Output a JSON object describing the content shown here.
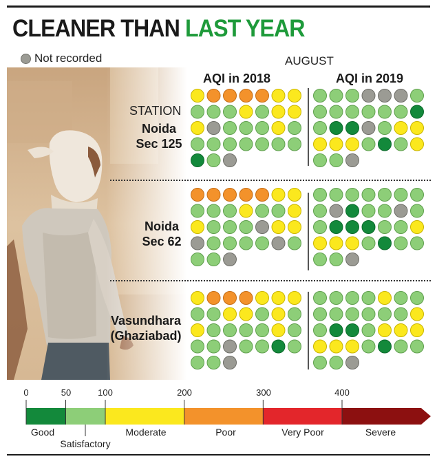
{
  "title": {
    "part1": "CLEANER THAN",
    "part2": "LAST YEAR"
  },
  "legend_not_recorded": "Not recorded",
  "month": "AUGUST",
  "station_header": "STATION",
  "colors": {
    "good": "#13893b",
    "satisfactory": "#8dce78",
    "moderate": "#fbe81e",
    "poor": "#f3922b",
    "very_poor": "#e3262b",
    "severe": "#8c1010",
    "not_recorded": "#9b9b94",
    "title_green": "#1e9a3a"
  },
  "chart_data": {
    "type": "dot-matrix",
    "year_labels": [
      "AQI in 2018",
      "AQI in 2019"
    ],
    "category_codes": {
      "G": "Good",
      "S": "Satisfactory",
      "M": "Moderate",
      "P": "Poor",
      "V": "Very Poor",
      "N": "Not recorded"
    },
    "stations": [
      {
        "name": [
          "Noida",
          "Sec 125"
        ],
        "aqi_2018": [
          "M",
          "P",
          "P",
          "P",
          "P",
          "M",
          "M",
          "S",
          "S",
          "S",
          "M",
          "S",
          "M",
          "M",
          "M",
          "N",
          "S",
          "S",
          "S",
          "M",
          "S",
          "S",
          "S",
          "S",
          "S",
          "S",
          "S",
          "S",
          "G",
          "S",
          "N"
        ],
        "aqi_2019": [
          "S",
          "S",
          "S",
          "N",
          "N",
          "N",
          "S",
          "S",
          "S",
          "S",
          "S",
          "S",
          "S",
          "G",
          "S",
          "G",
          "G",
          "N",
          "S",
          "M",
          "M",
          "M",
          "M",
          "M",
          "S",
          "G",
          "S",
          "M",
          "S",
          "S",
          "N"
        ]
      },
      {
        "name": [
          "Noida",
          "Sec 62"
        ],
        "aqi_2018": [
          "P",
          "P",
          "P",
          "P",
          "P",
          "M",
          "M",
          "S",
          "S",
          "S",
          "M",
          "S",
          "S",
          "M",
          "M",
          "S",
          "S",
          "S",
          "N",
          "M",
          "M",
          "N",
          "S",
          "S",
          "S",
          "S",
          "N",
          "S",
          "S",
          "S",
          "N"
        ],
        "aqi_2019": [
          "S",
          "S",
          "S",
          "S",
          "S",
          "S",
          "S",
          "S",
          "N",
          "G",
          "S",
          "S",
          "N",
          "S",
          "S",
          "G",
          "G",
          "G",
          "S",
          "S",
          "M",
          "M",
          "M",
          "M",
          "S",
          "G",
          "S",
          "S",
          "S",
          "S",
          "N"
        ]
      },
      {
        "name": [
          "Vasundhara",
          "(Ghaziabad)"
        ],
        "aqi_2018": [
          "M",
          "P",
          "P",
          "P",
          "M",
          "M",
          "M",
          "S",
          "S",
          "M",
          "M",
          "S",
          "M",
          "S",
          "M",
          "S",
          "S",
          "S",
          "S",
          "M",
          "S",
          "S",
          "S",
          "N",
          "S",
          "S",
          "G",
          "S",
          "S",
          "S",
          "N"
        ],
        "aqi_2019": [
          "S",
          "S",
          "S",
          "S",
          "M",
          "S",
          "S",
          "S",
          "S",
          "S",
          "S",
          "S",
          "S",
          "M",
          "S",
          "G",
          "G",
          "S",
          "M",
          "M",
          "M",
          "M",
          "M",
          "M",
          "S",
          "G",
          "S",
          "S",
          "S",
          "S",
          "N"
        ]
      }
    ],
    "scale": {
      "breakpoints": [
        0,
        50,
        100,
        200,
        300,
        400
      ],
      "bands": [
        {
          "label": "Good",
          "from": 0,
          "to": 50,
          "color": "#13893b"
        },
        {
          "label": "Satisfactory",
          "from": 50,
          "to": 100,
          "color": "#8dce78"
        },
        {
          "label": "Moderate",
          "from": 100,
          "to": 200,
          "color": "#fbe81e"
        },
        {
          "label": "Poor",
          "from": 200,
          "to": 300,
          "color": "#f3922b"
        },
        {
          "label": "Very Poor",
          "from": 300,
          "to": 400,
          "color": "#e3262b"
        },
        {
          "label": "Severe",
          "from": 400,
          "to": null,
          "color": "#8c1010"
        }
      ]
    }
  }
}
